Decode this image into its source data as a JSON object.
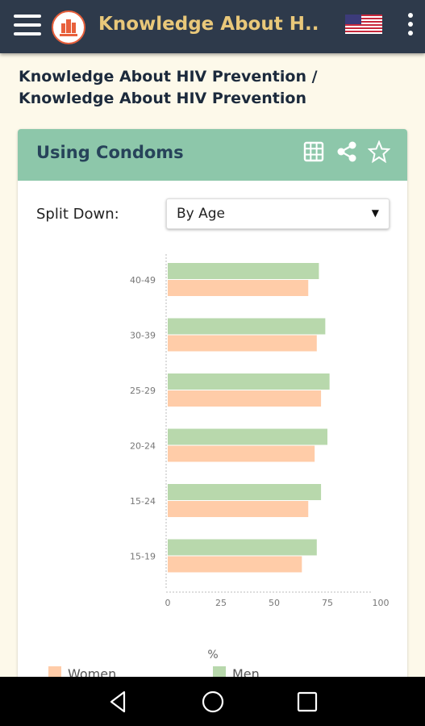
{
  "app": {
    "title": "Knowledge About H...",
    "icons": {
      "menu": "hamburger-menu-icon",
      "logo": "app-logo-icon",
      "language": "us-flag-icon",
      "more": "more-vert-icon"
    }
  },
  "breadcrumb": "Knowledge About HIV Prevention / Knowledge About HIV Prevention",
  "card": {
    "title": "Using Condoms",
    "icons": [
      "table-icon",
      "share-icon",
      "star-icon"
    ]
  },
  "filter": {
    "label": "Split Down:",
    "selected": "By Age"
  },
  "colors": {
    "appbar": "#2E3A4B",
    "title": "#E9C87A",
    "card_header": "#8DC7AA",
    "men": "#B8D8AC",
    "women": "#FFCCA8"
  },
  "chart_data": {
    "type": "bar",
    "orientation": "horizontal",
    "categories": [
      "40-49",
      "30-39",
      "25-29",
      "20-24",
      "15-24",
      "15-19"
    ],
    "series": [
      {
        "name": "Men",
        "values": [
          71,
          74,
          76,
          75,
          72,
          70
        ]
      },
      {
        "name": "Women",
        "values": [
          66,
          70,
          72,
          69,
          66,
          63
        ]
      }
    ],
    "x_ticks": [
      "0",
      "25",
      "50",
      "75",
      "100"
    ],
    "xlim": [
      0,
      100
    ],
    "xlabel": "%",
    "legend": [
      "Women",
      "Men"
    ],
    "legend_position": "bottom"
  },
  "navbar": {
    "icons": [
      "back-icon",
      "home-icon",
      "recents-icon"
    ]
  }
}
